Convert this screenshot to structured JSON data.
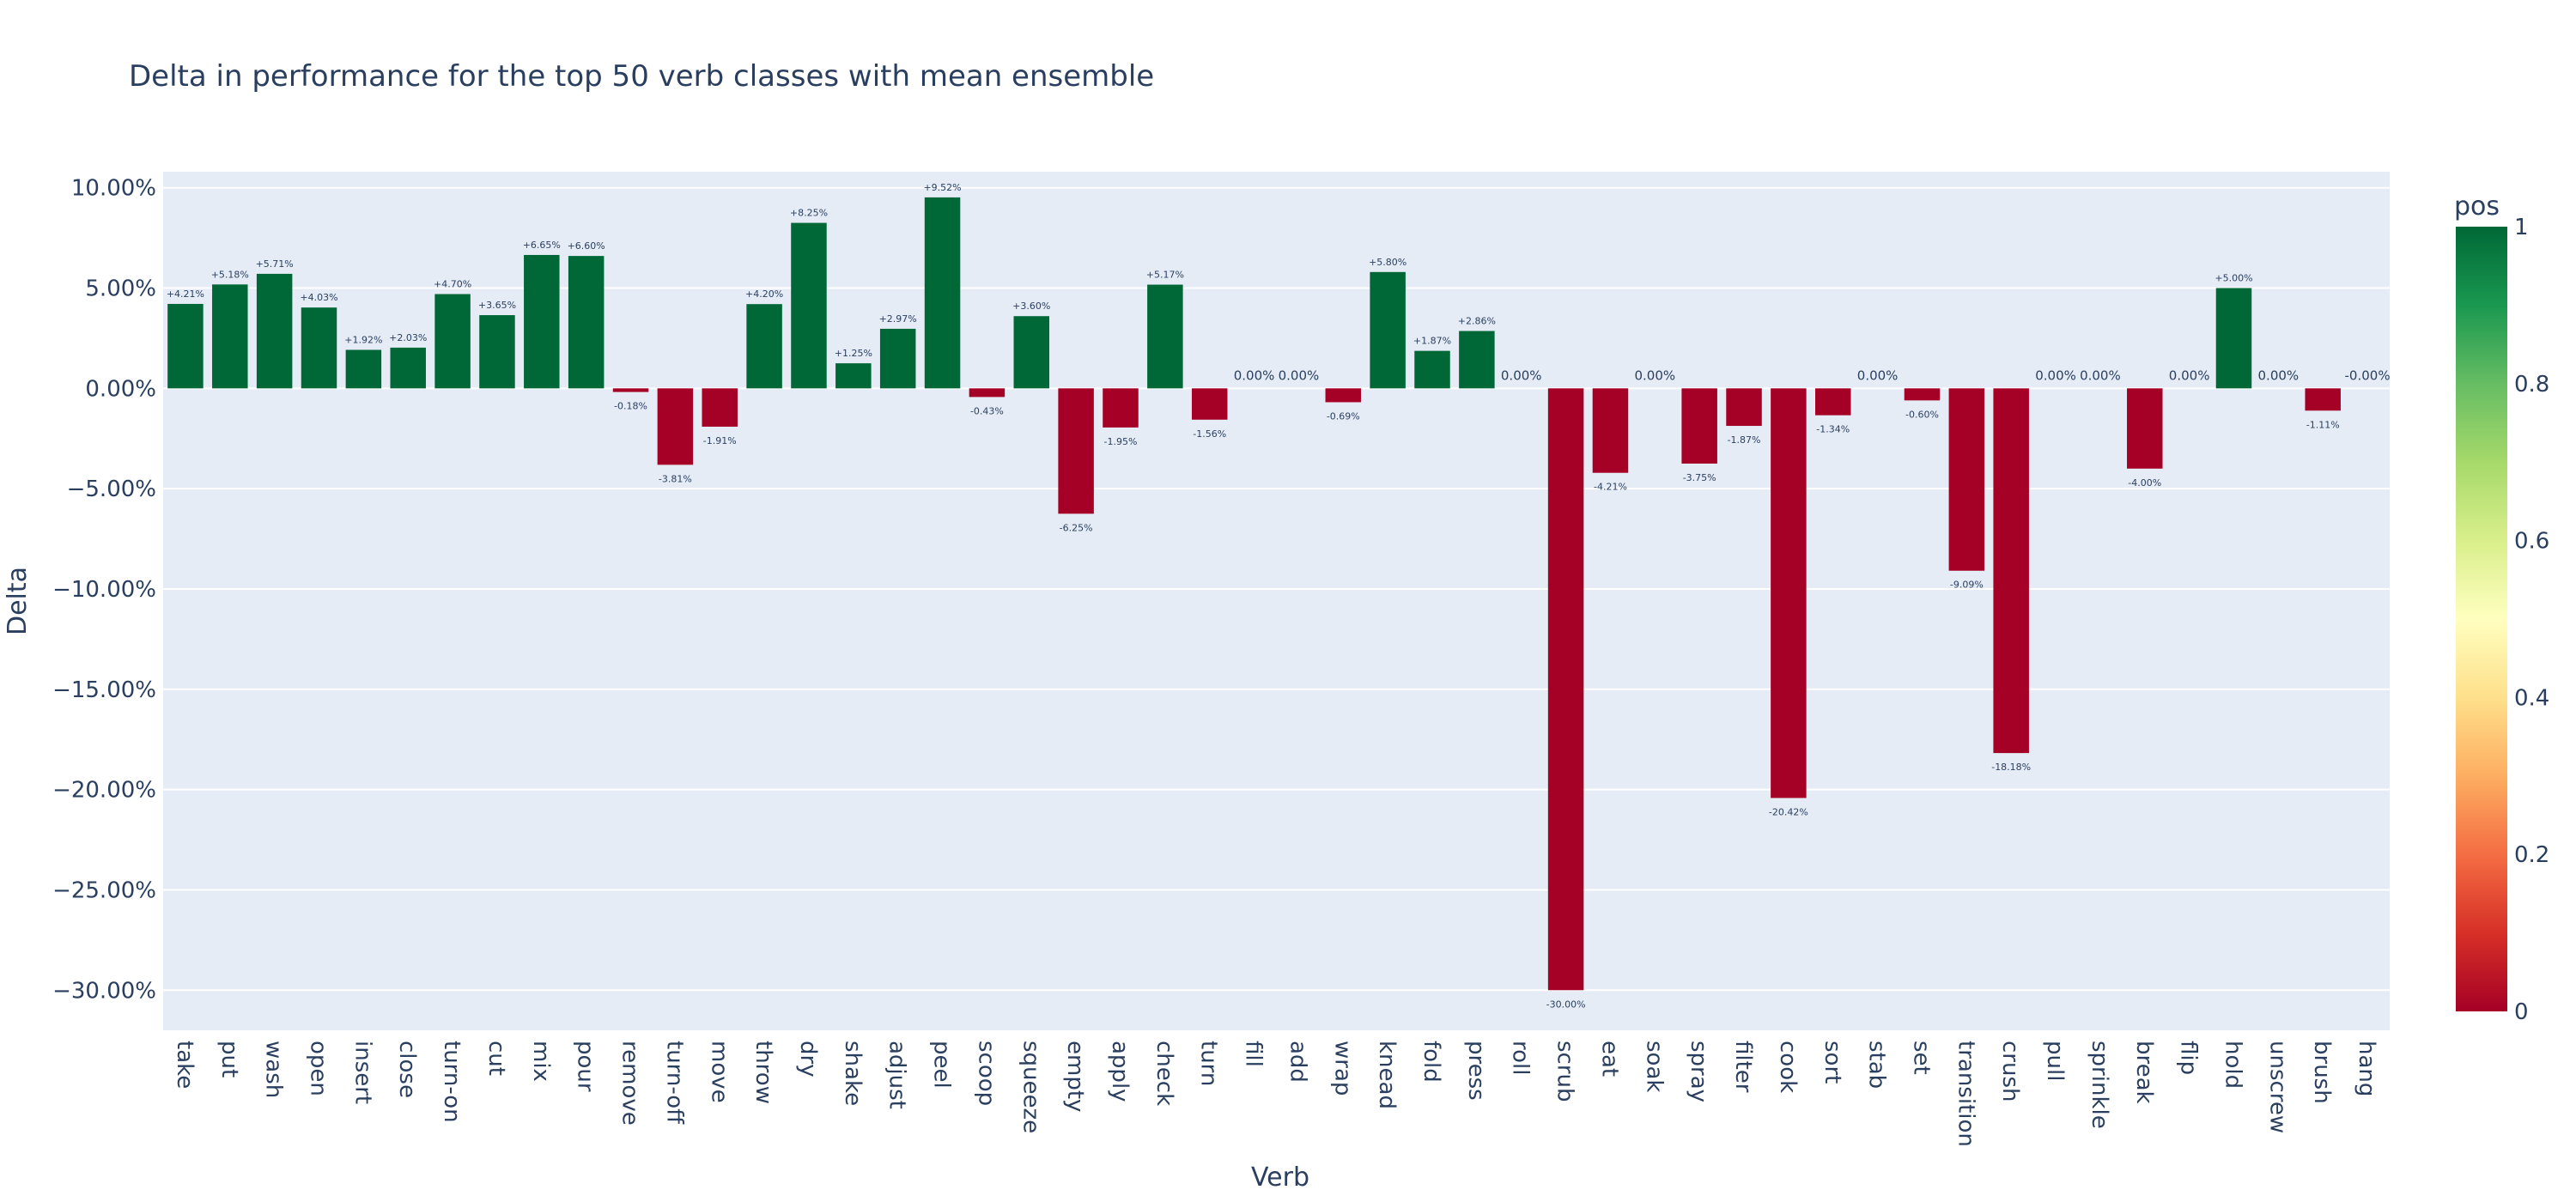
{
  "chart_data": {
    "type": "bar",
    "title": "Delta in performance for the top 50 verb classes with mean ensemble",
    "xlabel": "Verb",
    "ylabel": "Delta",
    "ylim": [
      -32,
      10.8
    ],
    "y_ticks": [
      10,
      5,
      0,
      -5,
      -10,
      -15,
      -20,
      -25,
      -30
    ],
    "y_tick_labels": [
      "10.00%",
      "5.00%",
      "0.00%",
      "−5.00%",
      "−10.00%",
      "−15.00%",
      "−20.00%",
      "−25.00%",
      "−30.00%"
    ],
    "categories": [
      "take",
      "put",
      "wash",
      "open",
      "insert",
      "close",
      "turn-on",
      "cut",
      "mix",
      "pour",
      "remove",
      "turn-off",
      "move",
      "throw",
      "dry",
      "shake",
      "adjust",
      "peel",
      "scoop",
      "squeeze",
      "empty",
      "apply",
      "check",
      "turn",
      "fill",
      "add",
      "wrap",
      "knead",
      "fold",
      "press",
      "roll",
      "scrub",
      "eat",
      "soak",
      "spray",
      "filter",
      "cook",
      "sort",
      "stab",
      "set",
      "transition",
      "crush",
      "pull",
      "sprinkle",
      "break",
      "flip",
      "hold",
      "unscrew",
      "brush",
      "hang"
    ],
    "values": [
      4.21,
      5.18,
      5.71,
      4.03,
      1.92,
      2.03,
      4.7,
      3.65,
      6.65,
      6.6,
      -0.18,
      -3.81,
      -1.91,
      4.2,
      8.25,
      1.25,
      2.97,
      9.52,
      -0.43,
      3.6,
      -6.25,
      -1.95,
      5.17,
      -1.56,
      0,
      0,
      -0.69,
      5.8,
      1.87,
      2.86,
      0,
      -30.0,
      -4.21,
      0,
      -3.75,
      -1.87,
      -20.42,
      -1.34,
      0,
      -0.6,
      -9.09,
      -18.18,
      0,
      0,
      -4.0,
      0,
      5.0,
      0,
      -1.11,
      0
    ],
    "labels": [
      "+4.21%",
      "+5.18%",
      "+5.71%",
      "+4.03%",
      "+1.92%",
      "+2.03%",
      "+4.70%",
      "+3.65%",
      "+6.65%",
      "+6.60%",
      "-0.18%",
      "-3.81%",
      "-1.91%",
      "+4.20%",
      "+8.25%",
      "+1.25%",
      "+2.97%",
      "+9.52%",
      "-0.43%",
      "+3.60%",
      "-6.25%",
      "-1.95%",
      "+5.17%",
      "-1.56%",
      "0.00%",
      "0.00%",
      "-0.69%",
      "+5.80%",
      "+1.87%",
      "+2.86%",
      "0.00%",
      "-30.00%",
      "-4.21%",
      "0.00%",
      "-3.75%",
      "-1.87%",
      "-20.42%",
      "-1.34%",
      "0.00%",
      "-0.60%",
      "-9.09%",
      "-18.18%",
      "0.00%",
      "0.00%",
      "-4.00%",
      "0.00%",
      "+5.00%",
      "0.00%",
      "-1.11%",
      "-0.00%"
    ],
    "pos": [
      1,
      1,
      1,
      1,
      1,
      1,
      1,
      1,
      1,
      1,
      0,
      0,
      0,
      1,
      1,
      1,
      1,
      1,
      0,
      1,
      0,
      0,
      1,
      0,
      0,
      0,
      0,
      1,
      1,
      1,
      0,
      0,
      0,
      0,
      0,
      0,
      0,
      0,
      0,
      0,
      0,
      0,
      0,
      0,
      0,
      0,
      1,
      0,
      0,
      0
    ],
    "grid": true,
    "legend": "none",
    "colorbar": {
      "title": "pos",
      "ticks": [
        0,
        0.2,
        0.4,
        0.6,
        0.8,
        1
      ],
      "tick_labels": [
        "0",
        "0.2",
        "0.4",
        "0.6",
        "0.8",
        "1"
      ],
      "colorscale": [
        "#a50026",
        "#d73027",
        "#f46d43",
        "#fdae61",
        "#fee08b",
        "#ffffbf",
        "#d9ef8b",
        "#a6d96a",
        "#66bd63",
        "#1a9850",
        "#006837"
      ]
    },
    "colors": {
      "positive": "#006837",
      "negative": "#a50026",
      "plot_background": "#e5ecf6",
      "gridline": "#ffffff",
      "text": "#2a3f5f"
    }
  }
}
